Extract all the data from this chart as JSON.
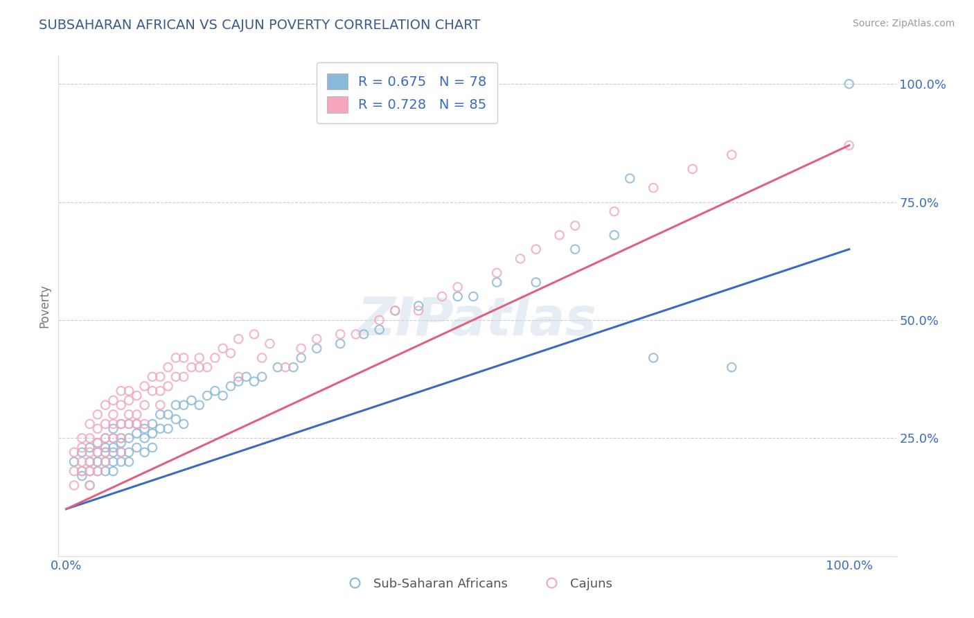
{
  "title": "SUBSAHARAN AFRICAN VS CAJUN POVERTY CORRELATION CHART",
  "source": "Source: ZipAtlas.com",
  "ylabel": "Poverty",
  "blue_R": 0.675,
  "blue_N": 78,
  "pink_R": 0.728,
  "pink_N": 85,
  "blue_color": "#89b8d8",
  "pink_color": "#f4a7bb",
  "blue_line_color": "#3a6bbf",
  "pink_line_color": "#e06080",
  "title_color": "#3a5a8c",
  "source_color": "#999999",
  "legend_text_color": "#3a6bbf",
  "watermark": "ZIPatlas",
  "blue_line_x0": 0.0,
  "blue_line_y0": 0.1,
  "blue_line_x1": 1.0,
  "blue_line_y1": 0.65,
  "pink_line_x0": 0.0,
  "pink_line_y0": 0.1,
  "pink_line_x1": 1.0,
  "pink_line_y1": 0.87,
  "blue_scatter_x": [
    0.01,
    0.02,
    0.02,
    0.02,
    0.03,
    0.03,
    0.03,
    0.03,
    0.04,
    0.04,
    0.04,
    0.04,
    0.05,
    0.05,
    0.05,
    0.05,
    0.05,
    0.06,
    0.06,
    0.06,
    0.06,
    0.06,
    0.06,
    0.07,
    0.07,
    0.07,
    0.07,
    0.07,
    0.08,
    0.08,
    0.08,
    0.08,
    0.09,
    0.09,
    0.09,
    0.1,
    0.1,
    0.1,
    0.11,
    0.11,
    0.11,
    0.12,
    0.12,
    0.13,
    0.13,
    0.14,
    0.14,
    0.15,
    0.15,
    0.16,
    0.17,
    0.18,
    0.19,
    0.2,
    0.21,
    0.22,
    0.23,
    0.24,
    0.25,
    0.27,
    0.29,
    0.3,
    0.32,
    0.35,
    0.38,
    0.4,
    0.42,
    0.45,
    0.5,
    0.52,
    0.55,
    0.6,
    0.65,
    0.7,
    0.72,
    0.75,
    0.85,
    1.0
  ],
  "blue_scatter_y": [
    0.2,
    0.17,
    0.22,
    0.18,
    0.2,
    0.23,
    0.18,
    0.15,
    0.22,
    0.18,
    0.24,
    0.2,
    0.23,
    0.2,
    0.25,
    0.18,
    0.22,
    0.2,
    0.25,
    0.22,
    0.27,
    0.18,
    0.23,
    0.25,
    0.22,
    0.28,
    0.24,
    0.2,
    0.25,
    0.22,
    0.28,
    0.2,
    0.26,
    0.23,
    0.28,
    0.27,
    0.25,
    0.22,
    0.28,
    0.26,
    0.23,
    0.3,
    0.27,
    0.3,
    0.27,
    0.32,
    0.29,
    0.32,
    0.28,
    0.33,
    0.32,
    0.34,
    0.35,
    0.34,
    0.36,
    0.37,
    0.38,
    0.37,
    0.38,
    0.4,
    0.4,
    0.42,
    0.44,
    0.45,
    0.47,
    0.48,
    0.52,
    0.53,
    0.55,
    0.55,
    0.58,
    0.58,
    0.65,
    0.68,
    0.8,
    0.42,
    0.4,
    1.0
  ],
  "pink_scatter_x": [
    0.01,
    0.01,
    0.01,
    0.02,
    0.02,
    0.02,
    0.02,
    0.03,
    0.03,
    0.03,
    0.03,
    0.03,
    0.03,
    0.04,
    0.04,
    0.04,
    0.04,
    0.04,
    0.05,
    0.05,
    0.05,
    0.05,
    0.05,
    0.06,
    0.06,
    0.06,
    0.06,
    0.07,
    0.07,
    0.07,
    0.07,
    0.07,
    0.08,
    0.08,
    0.08,
    0.08,
    0.09,
    0.09,
    0.09,
    0.1,
    0.1,
    0.1,
    0.11,
    0.11,
    0.12,
    0.12,
    0.12,
    0.13,
    0.13,
    0.14,
    0.14,
    0.15,
    0.15,
    0.16,
    0.17,
    0.18,
    0.19,
    0.2,
    0.21,
    0.22,
    0.24,
    0.25,
    0.26,
    0.28,
    0.3,
    0.32,
    0.35,
    0.37,
    0.4,
    0.42,
    0.45,
    0.48,
    0.5,
    0.55,
    0.58,
    0.6,
    0.63,
    0.65,
    0.7,
    0.75,
    0.8,
    0.85,
    1.0,
    0.17,
    0.22
  ],
  "pink_scatter_y": [
    0.22,
    0.18,
    0.15,
    0.2,
    0.23,
    0.18,
    0.25,
    0.22,
    0.25,
    0.28,
    0.2,
    0.18,
    0.15,
    0.24,
    0.22,
    0.27,
    0.18,
    0.3,
    0.25,
    0.22,
    0.28,
    0.2,
    0.32,
    0.28,
    0.25,
    0.3,
    0.33,
    0.28,
    0.32,
    0.25,
    0.35,
    0.22,
    0.3,
    0.33,
    0.28,
    0.35,
    0.3,
    0.34,
    0.28,
    0.32,
    0.36,
    0.28,
    0.35,
    0.38,
    0.35,
    0.38,
    0.32,
    0.36,
    0.4,
    0.38,
    0.42,
    0.38,
    0.42,
    0.4,
    0.42,
    0.4,
    0.42,
    0.44,
    0.43,
    0.46,
    0.47,
    0.42,
    0.45,
    0.4,
    0.44,
    0.46,
    0.47,
    0.47,
    0.5,
    0.52,
    0.52,
    0.55,
    0.57,
    0.6,
    0.63,
    0.65,
    0.68,
    0.7,
    0.73,
    0.78,
    0.82,
    0.85,
    0.87,
    0.4,
    0.38
  ],
  "ylim": [
    0.0,
    1.06
  ],
  "xlim": [
    -0.01,
    1.06
  ],
  "ytick_vals": [
    0.0,
    0.25,
    0.5,
    0.75,
    1.0
  ],
  "ytick_labels": [
    "",
    "25.0%",
    "50.0%",
    "75.0%",
    "100.0%"
  ],
  "xtick_vals": [
    0.0,
    1.0
  ],
  "xtick_labels": [
    "0.0%",
    "100.0%"
  ]
}
